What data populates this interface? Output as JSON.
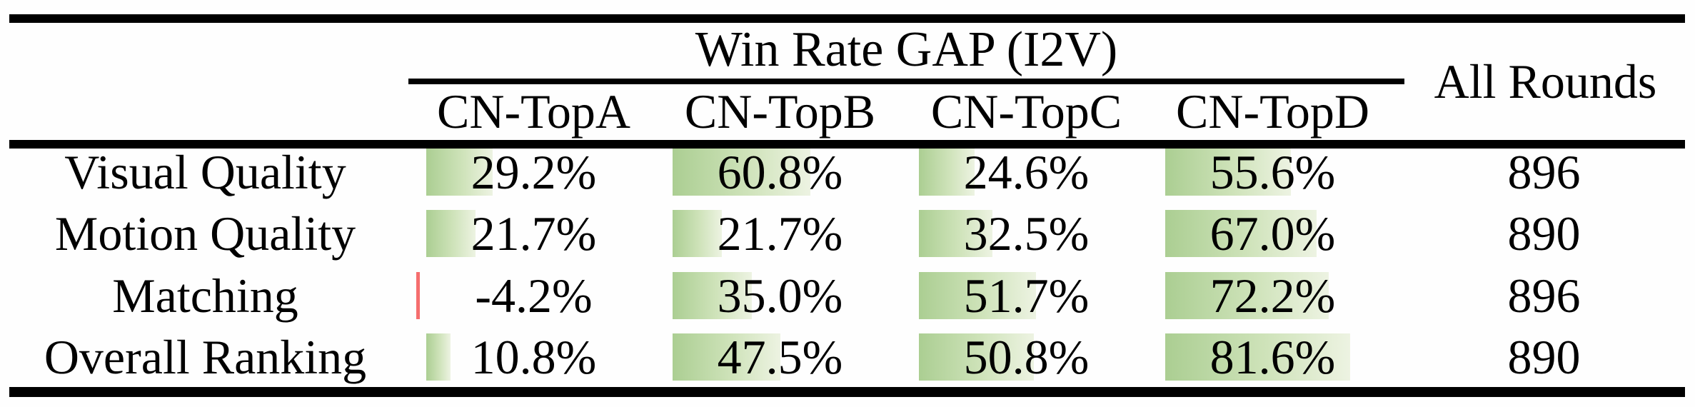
{
  "table": {
    "group_header": "Win Rate GAP (I2V)",
    "all_rounds_header": "All Rounds",
    "columns": [
      "CN-TopA",
      "CN-TopB",
      "CN-TopC",
      "CN-TopD"
    ],
    "rows": [
      {
        "label": "Visual Quality",
        "cells": [
          {
            "value": 29.2,
            "display": "29.2%"
          },
          {
            "value": 60.8,
            "display": "60.8%"
          },
          {
            "value": 24.6,
            "display": "24.6%"
          },
          {
            "value": 55.6,
            "display": "55.6%"
          }
        ],
        "rounds": "896"
      },
      {
        "label": "Motion Quality",
        "cells": [
          {
            "value": 21.7,
            "display": "21.7%"
          },
          {
            "value": 21.7,
            "display": "21.7%"
          },
          {
            "value": 32.5,
            "display": "32.5%"
          },
          {
            "value": 67.0,
            "display": "67.0%"
          }
        ],
        "rounds": "890"
      },
      {
        "label": "Matching",
        "cells": [
          {
            "value": -4.2,
            "display": "-4.2%"
          },
          {
            "value": 35.0,
            "display": "35.0%"
          },
          {
            "value": 51.7,
            "display": "51.7%"
          },
          {
            "value": 72.2,
            "display": "72.2%"
          }
        ],
        "rounds": "896"
      },
      {
        "label": "Overall Ranking",
        "cells": [
          {
            "value": 10.8,
            "display": "10.8%"
          },
          {
            "value": 47.5,
            "display": "47.5%"
          },
          {
            "value": 50.8,
            "display": "50.8%"
          },
          {
            "value": 81.6,
            "display": "81.6%"
          }
        ],
        "rounds": "890"
      }
    ],
    "colors": {
      "positive_bar_start": "#abce92",
      "positive_bar_end": "#edf3e2",
      "negative_bar": "#f56e6e",
      "rule": "#000000",
      "text": "#000000"
    }
  }
}
